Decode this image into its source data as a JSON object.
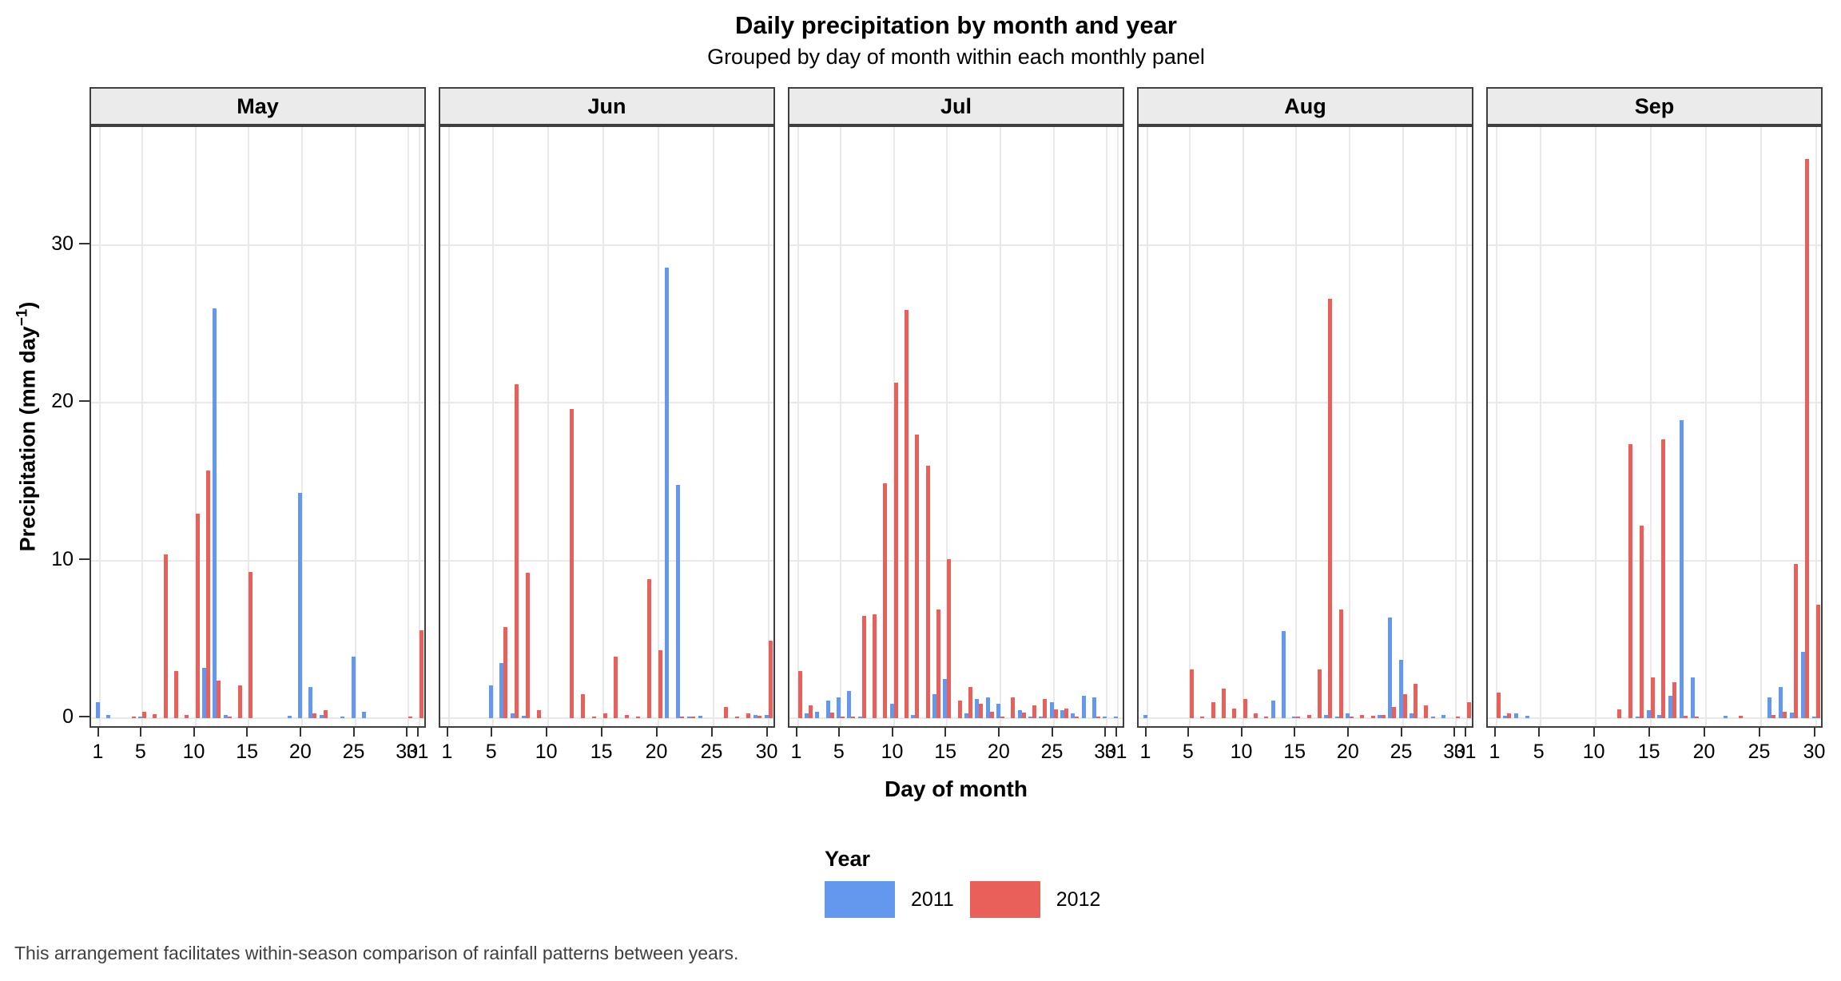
{
  "title": "Daily precipitation by month and year",
  "subtitle": "Grouped by day of month within each monthly panel",
  "caption": "This arrangement facilitates within-season comparison of rainfall patterns between years.",
  "x_axis": {
    "title": "Day of month"
  },
  "y_axis": {
    "label_prefix": "Precipitation (mm day",
    "label_sup": "−1",
    "label_suffix": ")",
    "ticks": [
      0,
      10,
      20,
      30
    ]
  },
  "legend": {
    "title": "Year",
    "entries": [
      {
        "label": "2011",
        "color": "#6398EE"
      },
      {
        "label": "2012",
        "color": "#E9605A"
      }
    ]
  },
  "colors": {
    "series_2011": "#6398EE",
    "series_2012": "#E9605A",
    "strip_background": "#EBEBEB",
    "panel_border": "#3F3F3F",
    "gridline": "#E9E9E9",
    "caption_text": "#404040"
  },
  "chart_data": {
    "type": "bar",
    "grouping": "dodged",
    "facet_by": "month",
    "xlabel": "Day of month",
    "ylabel": "Precipitation (mm day-1)",
    "ylim": [
      0,
      37.5
    ],
    "yticks": [
      0,
      10,
      20,
      30
    ],
    "grid": true,
    "legend_position": "bottom",
    "series_names": [
      "2011",
      "2012"
    ],
    "facets": [
      {
        "month": "May",
        "days": 31,
        "ticks": [
          1,
          5,
          10,
          15,
          20,
          25,
          30,
          31
        ],
        "series": [
          {
            "name": "2011",
            "values": [
              1,
              0.2,
              0,
              0,
              0.1,
              0,
              0,
              0,
              0,
              0,
              3.2,
              26,
              0.2,
              0,
              0,
              0,
              0,
              0,
              0.15,
              14.3,
              2,
              0.2,
              0,
              0.1,
              3.9,
              0.4,
              0,
              0,
              0,
              0,
              0
            ]
          },
          {
            "name": "2012",
            "values": [
              0,
              0,
              0,
              0.1,
              0.4,
              0.25,
              10.4,
              3,
              0.2,
              13,
              15.7,
              2.4,
              0.1,
              2.1,
              9.3,
              0,
              0,
              0,
              0,
              0,
              0.3,
              0.5,
              0,
              0,
              0,
              0,
              0,
              0,
              0,
              0.1,
              5.6
            ]
          }
        ]
      },
      {
        "month": "Jun",
        "days": 30,
        "ticks": [
          1,
          5,
          10,
          15,
          20,
          25,
          30
        ],
        "series": [
          {
            "name": "2011",
            "values": [
              0,
              0,
              0,
              0,
              2.1,
              3.5,
              0.3,
              0.15,
              0,
              0,
              0,
              0,
              0,
              0,
              0,
              0,
              0,
              0,
              0,
              0,
              28.6,
              14.8,
              0.1,
              0.15,
              0,
              0,
              0,
              0,
              0.2,
              0.2
            ]
          },
          {
            "name": "2012",
            "values": [
              0,
              0,
              0,
              0,
              0,
              5.8,
              21.2,
              9.2,
              0.5,
              0,
              0,
              19.6,
              1.5,
              0.1,
              0.3,
              3.9,
              0.2,
              0.1,
              8.8,
              4.3,
              0,
              0.1,
              0.1,
              0,
              0,
              0.7,
              0.1,
              0.3,
              0.15,
              4.9
            ]
          }
        ]
      },
      {
        "month": "Jul",
        "days": 31,
        "ticks": [
          1,
          5,
          10,
          15,
          20,
          25,
          30,
          31
        ],
        "series": [
          {
            "name": "2011",
            "values": [
              0,
              0.3,
              0.4,
              1.1,
              1.3,
              1.7,
              0.1,
              0,
              0,
              0.9,
              0,
              0.2,
              0,
              1.5,
              2.5,
              0,
              0.3,
              1.2,
              1.3,
              0.9,
              0,
              0.5,
              0.1,
              0.1,
              1,
              0.5,
              0.3,
              1.4,
              1.3,
              0.1,
              0.1
            ]
          },
          {
            "name": "2012",
            "values": [
              3,
              0.8,
              0,
              0.35,
              0.1,
              0.05,
              6.5,
              6.6,
              14.9,
              21.3,
              25.9,
              18,
              16,
              6.9,
              10.1,
              1.1,
              2,
              0.9,
              0.4,
              0.1,
              1.3,
              0.35,
              0.8,
              1.2,
              0.55,
              0.6,
              0.1,
              0,
              0.1,
              0,
              0
            ]
          }
        ]
      },
      {
        "month": "Aug",
        "days": 31,
        "ticks": [
          1,
          5,
          10,
          15,
          20,
          25,
          30,
          31
        ],
        "series": [
          {
            "name": "2011",
            "values": [
              0.2,
              0,
              0,
              0,
              0,
              0,
              0,
              0,
              0,
              0,
              0,
              0,
              1.1,
              5.5,
              0.1,
              0,
              0,
              0.2,
              0.1,
              0.3,
              0,
              0,
              0.2,
              6.4,
              3.7,
              0.3,
              0,
              0.1,
              0.2,
              0,
              0
            ]
          },
          {
            "name": "2012",
            "values": [
              0,
              0,
              0,
              0,
              3.1,
              0.1,
              1,
              1.9,
              0.6,
              1.2,
              0.3,
              0.1,
              0,
              0,
              0.1,
              0.2,
              3.1,
              26.6,
              6.9,
              0.1,
              0.2,
              0.15,
              0.2,
              0.7,
              1.5,
              2.2,
              0.8,
              0,
              0,
              0.1,
              1
            ]
          }
        ]
      },
      {
        "month": "Sep",
        "days": 30,
        "ticks": [
          1,
          5,
          10,
          15,
          20,
          25,
          30
        ],
        "series": [
          {
            "name": "2011",
            "values": [
              0,
              0.15,
              0.3,
              0.15,
              0,
              0,
              0,
              0,
              0,
              0,
              0,
              0,
              0,
              0.1,
              0.5,
              0.2,
              1.4,
              18.9,
              2.6,
              0,
              0,
              0.15,
              0,
              0,
              0,
              1.3,
              2,
              0.35,
              4.2,
              0.1
            ]
          },
          {
            "name": "2012",
            "values": [
              1.6,
              0.3,
              0,
              0,
              0,
              0,
              0,
              0,
              0,
              0,
              0,
              0.55,
              17.4,
              12.2,
              2.6,
              17.7,
              2.3,
              0.15,
              0.1,
              0,
              0,
              0,
              0.15,
              0,
              0,
              0.2,
              0.4,
              9.8,
              35.5,
              7.2
            ]
          }
        ]
      }
    ]
  }
}
